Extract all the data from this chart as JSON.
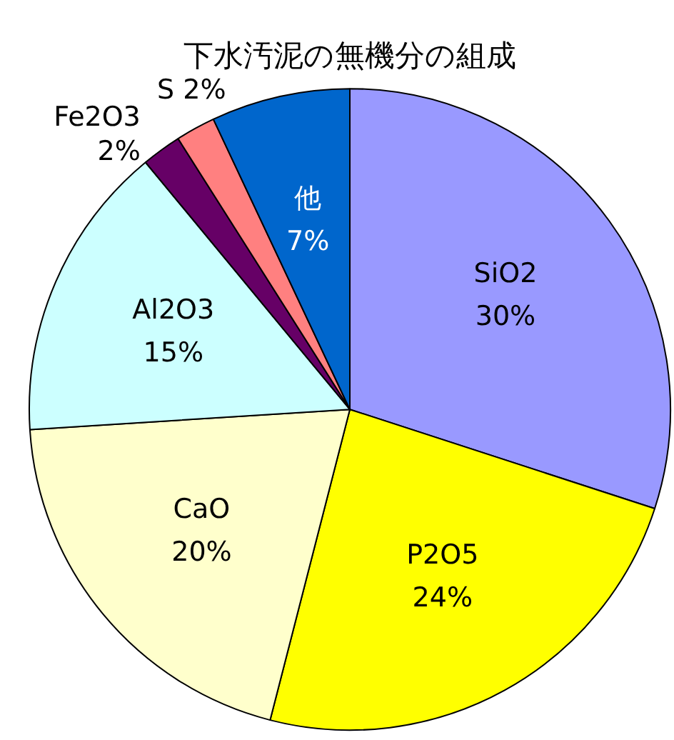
{
  "chart_data": {
    "type": "pie",
    "title": "下水汚泥の無機分の組成",
    "categories": [
      "SiO2",
      "P2O5",
      "CaO",
      "Al2O3",
      "Fe2O3",
      "S",
      "他"
    ],
    "values": [
      30,
      24,
      20,
      15,
      2,
      2,
      7
    ],
    "value_labels": [
      "30%",
      "24%",
      "20%",
      "15%",
      "2%",
      "2%",
      "7%"
    ],
    "colors": [
      "#9999ff",
      "#ffff00",
      "#ffffcc",
      "#ccffff",
      "#660066",
      "#ff8080",
      "#0066cc"
    ],
    "legend": false
  }
}
